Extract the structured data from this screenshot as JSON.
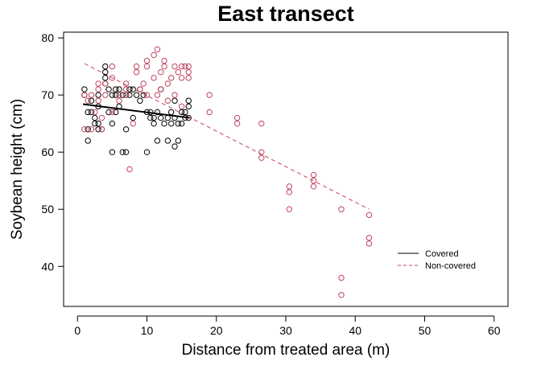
{
  "chart_data": {
    "type": "scatter",
    "title": "East transect",
    "xlabel": "Distance from treated area (m)",
    "ylabel": "Soybean height (cm)",
    "xlim": [
      -2,
      62
    ],
    "ylim": [
      33,
      81
    ],
    "xticks": [
      0,
      10,
      20,
      30,
      40,
      50,
      60
    ],
    "yticks": [
      40,
      50,
      60,
      70,
      80
    ],
    "grid": false,
    "legend_position": "bottom-right",
    "series": [
      {
        "name": "Covered",
        "color": "#000000",
        "marker": "open-circle",
        "line_style": "solid",
        "points": [
          [
            1,
            71
          ],
          [
            1,
            70
          ],
          [
            1.5,
            64
          ],
          [
            1.5,
            62
          ],
          [
            1.5,
            67
          ],
          [
            2,
            69
          ],
          [
            2,
            67
          ],
          [
            2.5,
            66
          ],
          [
            2.5,
            65
          ],
          [
            3,
            70
          ],
          [
            3,
            65
          ],
          [
            3,
            64
          ],
          [
            3,
            68
          ],
          [
            3.5,
            64
          ],
          [
            4,
            73
          ],
          [
            4,
            72
          ],
          [
            4,
            75
          ],
          [
            4,
            74
          ],
          [
            4.5,
            71
          ],
          [
            4.5,
            67
          ],
          [
            5,
            70
          ],
          [
            5,
            65
          ],
          [
            5,
            60
          ],
          [
            5.5,
            71
          ],
          [
            5.5,
            70
          ],
          [
            5.5,
            67
          ],
          [
            6,
            71
          ],
          [
            6,
            68
          ],
          [
            6.5,
            70
          ],
          [
            6.5,
            60
          ],
          [
            7,
            70
          ],
          [
            7,
            64
          ],
          [
            7,
            60
          ],
          [
            7.5,
            70
          ],
          [
            7.5,
            71
          ],
          [
            8,
            66
          ],
          [
            8,
            71
          ],
          [
            8.5,
            70
          ],
          [
            9,
            71
          ],
          [
            9,
            69
          ],
          [
            9.5,
            70
          ],
          [
            10,
            60
          ],
          [
            10,
            67
          ],
          [
            10.5,
            67
          ],
          [
            10.5,
            66
          ],
          [
            11,
            66
          ],
          [
            11,
            65
          ],
          [
            11.5,
            67
          ],
          [
            11.5,
            62
          ],
          [
            12,
            71
          ],
          [
            12,
            66
          ],
          [
            12.5,
            65
          ],
          [
            13,
            66
          ],
          [
            13,
            62
          ],
          [
            13.5,
            67
          ],
          [
            13.5,
            65
          ],
          [
            14,
            69
          ],
          [
            14,
            66
          ],
          [
            14,
            61
          ],
          [
            14.5,
            62
          ],
          [
            14.5,
            65
          ],
          [
            15,
            67
          ],
          [
            15,
            65
          ],
          [
            15.5,
            66
          ],
          [
            15.5,
            67
          ],
          [
            16,
            68
          ],
          [
            16,
            69
          ],
          [
            16,
            66
          ]
        ],
        "trend": {
          "x": [
            0.8,
            16.2
          ],
          "y": [
            68.4,
            66.0
          ]
        }
      },
      {
        "name": "Non-covered",
        "color": "#c0445e",
        "marker": "open-circle",
        "line_style": "dashed",
        "points": [
          [
            1,
            70
          ],
          [
            1,
            64
          ],
          [
            1.5,
            69
          ],
          [
            2,
            70
          ],
          [
            2,
            64
          ],
          [
            2.5,
            67
          ],
          [
            3,
            72
          ],
          [
            3,
            71
          ],
          [
            3,
            69
          ],
          [
            3.5,
            64
          ],
          [
            3.5,
            66
          ],
          [
            4,
            72
          ],
          [
            4,
            70
          ],
          [
            5,
            75
          ],
          [
            5,
            73
          ],
          [
            5,
            67
          ],
          [
            6,
            70
          ],
          [
            6,
            69
          ],
          [
            7,
            72
          ],
          [
            7,
            71
          ],
          [
            7,
            70
          ],
          [
            7.5,
            57
          ],
          [
            8,
            65
          ],
          [
            8.5,
            75
          ],
          [
            8.5,
            74
          ],
          [
            9,
            71
          ],
          [
            9.5,
            72
          ],
          [
            10,
            76
          ],
          [
            10,
            75
          ],
          [
            10,
            70
          ],
          [
            11,
            77
          ],
          [
            11,
            73
          ],
          [
            11.5,
            78
          ],
          [
            11.5,
            70
          ],
          [
            12,
            74
          ],
          [
            12,
            71
          ],
          [
            12.5,
            76
          ],
          [
            12.5,
            75
          ],
          [
            13,
            72
          ],
          [
            13,
            69
          ],
          [
            13.5,
            73
          ],
          [
            14,
            75
          ],
          [
            14,
            70
          ],
          [
            14.5,
            74
          ],
          [
            15,
            75
          ],
          [
            15,
            73
          ],
          [
            15,
            68
          ],
          [
            15.5,
            75
          ],
          [
            16,
            75
          ],
          [
            16,
            74
          ],
          [
            16,
            73
          ],
          [
            19,
            70
          ],
          [
            19,
            67
          ],
          [
            23,
            66
          ],
          [
            23,
            65
          ],
          [
            26.5,
            65
          ],
          [
            26.5,
            60
          ],
          [
            26.5,
            59
          ],
          [
            30.5,
            54
          ],
          [
            30.5,
            53
          ],
          [
            30.5,
            50
          ],
          [
            34,
            56
          ],
          [
            34,
            55
          ],
          [
            34,
            54
          ],
          [
            38,
            50
          ],
          [
            38,
            38
          ],
          [
            38,
            35
          ],
          [
            42,
            49
          ],
          [
            42,
            45
          ],
          [
            42,
            44
          ]
        ],
        "trend": {
          "x": [
            1,
            42
          ],
          "y": [
            75.5,
            50
          ]
        }
      }
    ]
  }
}
